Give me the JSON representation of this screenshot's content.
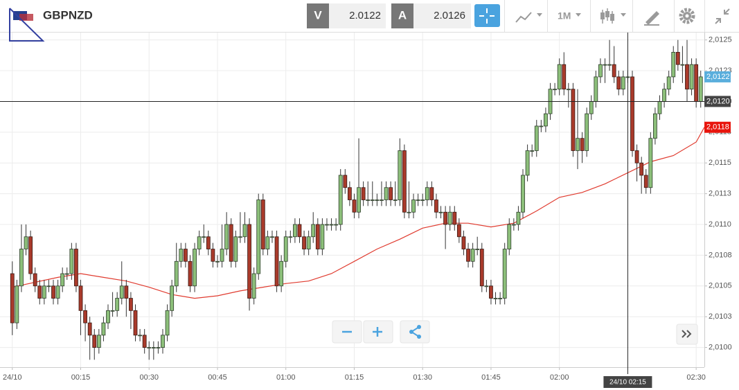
{
  "toolbar": {
    "symbol": "GBPNZD",
    "bid_label": "V",
    "bid": "2.0122",
    "ask_label": "A",
    "ask": "2.0126",
    "timeframe": "1M"
  },
  "chart_data": {
    "type": "candlestick",
    "xlim": [
      -2.7,
      151.8
    ],
    "xticks": [
      {
        "value": 0,
        "label": "24/10"
      },
      {
        "value": 15,
        "label": "00:15"
      },
      {
        "value": 30,
        "label": "00:30"
      },
      {
        "value": 45,
        "label": "00:45"
      },
      {
        "value": 60,
        "label": "01:00"
      },
      {
        "value": 75,
        "label": "01:15"
      },
      {
        "value": 90,
        "label": "01:30"
      },
      {
        "value": 105,
        "label": "01:45"
      },
      {
        "value": 120,
        "label": "02:00"
      },
      {
        "value": 150,
        "label": "02:30"
      }
    ],
    "ylim": [
      2.00984,
      2.01256
    ],
    "yticks": [
      {
        "value": 2.01,
        "label": "2,0100"
      },
      {
        "value": 2.01025,
        "label": "2,0103"
      },
      {
        "value": 2.0105,
        "label": "2,0105"
      },
      {
        "value": 2.01075,
        "label": "2,0108"
      },
      {
        "value": 2.011,
        "label": "2,0110"
      },
      {
        "value": 2.01125,
        "label": "2,0113"
      },
      {
        "value": 2.0115,
        "label": "2,0115"
      },
      {
        "value": 2.01175,
        "label": "2,0118"
      },
      {
        "value": 2.012,
        "label": "2,0120"
      },
      {
        "value": 2.01225,
        "label": "2,0123"
      },
      {
        "value": 2.0125,
        "label": "2,0125"
      }
    ],
    "grid": true,
    "up_color": "#8cbf7a",
    "down_color": "#a93a2b",
    "candles": [
      [
        2.0106,
        2.0107,
        2.0101,
        2.0102
      ],
      [
        2.0102,
        2.01055,
        2.01015,
        2.0105
      ],
      [
        2.0105,
        2.011,
        2.01045,
        2.0108
      ],
      [
        2.0108,
        2.011,
        2.01075,
        2.0109
      ],
      [
        2.0109,
        2.01095,
        2.01055,
        2.0106
      ],
      [
        2.0106,
        2.01065,
        2.01045,
        2.0105
      ],
      [
        2.0105,
        2.01055,
        2.01035,
        2.0104
      ],
      [
        2.0104,
        2.01055,
        2.01035,
        2.0105
      ],
      [
        2.0105,
        2.01055,
        2.01045,
        2.0105
      ],
      [
        2.0105,
        2.01055,
        2.01035,
        2.0104
      ],
      [
        2.0104,
        2.01055,
        2.01035,
        2.0105
      ],
      [
        2.0105,
        2.01065,
        2.01045,
        2.0106
      ],
      [
        2.0106,
        2.01065,
        2.01055,
        2.0106
      ],
      [
        2.0106,
        2.01085,
        2.01055,
        2.0108
      ],
      [
        2.0108,
        2.01085,
        2.01045,
        2.0105
      ],
      [
        2.0105,
        2.01055,
        2.0101,
        2.0103
      ],
      [
        2.0103,
        2.01035,
        2.01005,
        2.0102
      ],
      [
        2.0102,
        2.01025,
        2.0099,
        2.0101
      ],
      [
        2.0101,
        2.01015,
        2.0099,
        2.01
      ],
      [
        2.01,
        2.01015,
        2.00995,
        2.0101
      ],
      [
        2.0101,
        2.01025,
        2.01005,
        2.0102
      ],
      [
        2.0102,
        2.01035,
        2.01015,
        2.0103
      ],
      [
        2.0103,
        2.01045,
        2.01025,
        2.0103
      ],
      [
        2.0103,
        2.01045,
        2.01025,
        2.0104
      ],
      [
        2.0104,
        2.0107,
        2.01035,
        2.0105
      ],
      [
        2.0105,
        2.01055,
        2.01025,
        2.0104
      ],
      [
        2.0104,
        2.01045,
        2.01015,
        2.0103
      ],
      [
        2.0103,
        2.01035,
        2.01005,
        2.0101
      ],
      [
        2.0101,
        2.01015,
        2.01005,
        2.0101
      ],
      [
        2.0101,
        2.01015,
        2.00995,
        2.01
      ],
      [
        2.01,
        2.01005,
        2.0099,
        2.01
      ],
      [
        2.01,
        2.01005,
        2.0099,
        2.01
      ],
      [
        2.01,
        2.01005,
        2.00995,
        2.01
      ],
      [
        2.01,
        2.01015,
        2.00995,
        2.0101
      ],
      [
        2.0101,
        2.01035,
        2.01005,
        2.0103
      ],
      [
        2.0103,
        2.01055,
        2.01025,
        2.0105
      ],
      [
        2.0105,
        2.01085,
        2.01045,
        2.0107
      ],
      [
        2.0107,
        2.01085,
        2.01065,
        2.0108
      ],
      [
        2.0108,
        2.01085,
        2.01065,
        2.0107
      ],
      [
        2.0107,
        2.01075,
        2.01045,
        2.0105
      ],
      [
        2.0105,
        2.01085,
        2.01045,
        2.0108
      ],
      [
        2.0108,
        2.01095,
        2.01075,
        2.0109
      ],
      [
        2.0109,
        2.011,
        2.01085,
        2.0109
      ],
      [
        2.0109,
        2.01095,
        2.01075,
        2.0108
      ],
      [
        2.0108,
        2.01085,
        2.01065,
        2.0107
      ],
      [
        2.0107,
        2.01075,
        2.01065,
        2.0107
      ],
      [
        2.0107,
        2.011,
        2.01065,
        2.0108
      ],
      [
        2.0108,
        2.0111,
        2.01075,
        2.011
      ],
      [
        2.011,
        2.01105,
        2.01065,
        2.0107
      ],
      [
        2.0107,
        2.01095,
        2.01065,
        2.0109
      ],
      [
        2.0109,
        2.0111,
        2.01085,
        2.0109
      ],
      [
        2.0109,
        2.0111,
        2.01085,
        2.011
      ],
      [
        2.011,
        2.01105,
        2.0103,
        2.0104
      ],
      [
        2.0104,
        2.01065,
        2.01035,
        2.0106
      ],
      [
        2.0106,
        2.01125,
        2.01055,
        2.0112
      ],
      [
        2.0112,
        2.01125,
        2.01075,
        2.0108
      ],
      [
        2.0108,
        2.01095,
        2.01075,
        2.0109
      ],
      [
        2.0109,
        2.01095,
        2.01085,
        2.0109
      ],
      [
        2.0109,
        2.01095,
        2.01045,
        2.0105
      ],
      [
        2.0105,
        2.01075,
        2.01045,
        2.0107
      ],
      [
        2.0107,
        2.01095,
        2.01065,
        2.0109
      ],
      [
        2.0109,
        2.01095,
        2.01085,
        2.0109
      ],
      [
        2.0109,
        2.01105,
        2.01085,
        2.011
      ],
      [
        2.011,
        2.01105,
        2.01085,
        2.0109
      ],
      [
        2.0109,
        2.01095,
        2.01075,
        2.0108
      ],
      [
        2.0108,
        2.01095,
        2.01075,
        2.0109
      ],
      [
        2.0109,
        2.0111,
        2.01085,
        2.011
      ],
      [
        2.011,
        2.01105,
        2.01075,
        2.0108
      ],
      [
        2.0108,
        2.01105,
        2.01075,
        2.011
      ],
      [
        2.011,
        2.01105,
        2.01095,
        2.011
      ],
      [
        2.011,
        2.01105,
        2.01095,
        2.011
      ],
      [
        2.011,
        2.01105,
        2.01095,
        2.011
      ],
      [
        2.011,
        2.01145,
        2.01095,
        2.0114
      ],
      [
        2.0114,
        2.01145,
        2.01125,
        2.0113
      ],
      [
        2.0113,
        2.01135,
        2.01115,
        2.0112
      ],
      [
        2.0112,
        2.01125,
        2.01105,
        2.0111
      ],
      [
        2.0111,
        2.0117,
        2.01105,
        2.0113
      ],
      [
        2.0113,
        2.01135,
        2.01115,
        2.0112
      ],
      [
        2.0112,
        2.01135,
        2.01115,
        2.0112
      ],
      [
        2.0112,
        2.01135,
        2.01115,
        2.0112
      ],
      [
        2.0112,
        2.01125,
        2.01115,
        2.0112
      ],
      [
        2.0112,
        2.01135,
        2.01115,
        2.0112
      ],
      [
        2.0112,
        2.01135,
        2.01115,
        2.0113
      ],
      [
        2.0113,
        2.01135,
        2.01115,
        2.0112
      ],
      [
        2.0112,
        2.01135,
        2.01115,
        2.0112
      ],
      [
        2.0112,
        2.0117,
        2.01115,
        2.0116
      ],
      [
        2.0116,
        2.01165,
        2.01105,
        2.0111
      ],
      [
        2.0111,
        2.01135,
        2.01105,
        2.0111
      ],
      [
        2.0111,
        2.01125,
        2.01105,
        2.0112
      ],
      [
        2.0112,
        2.01125,
        2.01115,
        2.0112
      ],
      [
        2.0112,
        2.01125,
        2.01115,
        2.0112
      ],
      [
        2.0112,
        2.01135,
        2.01115,
        2.0113
      ],
      [
        2.0113,
        2.01135,
        2.01115,
        2.0112
      ],
      [
        2.0112,
        2.01125,
        2.01105,
        2.0111
      ],
      [
        2.0111,
        2.01115,
        2.01105,
        2.0111
      ],
      [
        2.0111,
        2.01115,
        2.0108,
        2.011
      ],
      [
        2.011,
        2.01115,
        2.01095,
        2.0111
      ],
      [
        2.0111,
        2.01115,
        2.01095,
        2.011
      ],
      [
        2.011,
        2.01105,
        2.01085,
        2.0109
      ],
      [
        2.0109,
        2.01095,
        2.01075,
        2.0108
      ],
      [
        2.0108,
        2.01085,
        2.01065,
        2.0107
      ],
      [
        2.0107,
        2.01085,
        2.01065,
        2.0108
      ],
      [
        2.0108,
        2.0109,
        2.01075,
        2.0108
      ],
      [
        2.0108,
        2.01085,
        2.01045,
        2.0105
      ],
      [
        2.0105,
        2.01055,
        2.01045,
        2.0105
      ],
      [
        2.0105,
        2.01055,
        2.01035,
        2.0104
      ],
      [
        2.0104,
        2.01045,
        2.01035,
        2.0104
      ],
      [
        2.0104,
        2.01045,
        2.01035,
        2.0104
      ],
      [
        2.0104,
        2.01085,
        2.01035,
        2.0108
      ],
      [
        2.0108,
        2.01105,
        2.01075,
        2.011
      ],
      [
        2.011,
        2.01105,
        2.01095,
        2.011
      ],
      [
        2.011,
        2.01115,
        2.01095,
        2.0111
      ],
      [
        2.0111,
        2.01145,
        2.01105,
        2.0114
      ],
      [
        2.0114,
        2.01165,
        2.01135,
        2.0116
      ],
      [
        2.0116,
        2.01165,
        2.01155,
        2.0116
      ],
      [
        2.0116,
        2.01185,
        2.01155,
        2.0118
      ],
      [
        2.0118,
        2.01185,
        2.01175,
        2.0118
      ],
      [
        2.0118,
        2.01195,
        2.01175,
        2.0119
      ],
      [
        2.0119,
        2.01215,
        2.01185,
        2.0121
      ],
      [
        2.0121,
        2.01215,
        2.01205,
        2.0121
      ],
      [
        2.0121,
        2.01235,
        2.01205,
        2.0123
      ],
      [
        2.0123,
        2.0124,
        2.01205,
        2.0121
      ],
      [
        2.0121,
        2.01215,
        2.01195,
        2.0121
      ],
      [
        2.0121,
        2.01215,
        2.01155,
        2.0116
      ],
      [
        2.0116,
        2.0121,
        2.01145,
        2.0117
      ],
      [
        2.0117,
        2.01175,
        2.0115,
        2.0116
      ],
      [
        2.0116,
        2.01195,
        2.01155,
        2.0119
      ],
      [
        2.0119,
        2.01205,
        2.01185,
        2.012
      ],
      [
        2.012,
        2.01225,
        2.01195,
        2.0122
      ],
      [
        2.0122,
        2.01235,
        2.01215,
        2.0123
      ],
      [
        2.0123,
        2.01235,
        2.01215,
        2.0123
      ],
      [
        2.0123,
        2.0125,
        2.01225,
        2.0123
      ],
      [
        2.0123,
        2.01245,
        2.01215,
        2.0122
      ],
      [
        2.0122,
        2.01225,
        2.01205,
        2.0121
      ],
      [
        2.0121,
        2.01225,
        2.01205,
        2.0122
      ],
      [
        2.0122,
        2.01225,
        2.01215,
        2.0122
      ],
      [
        2.0122,
        2.01225,
        2.01155,
        2.0116
      ],
      [
        2.0116,
        2.01165,
        2.01135,
        2.0115
      ],
      [
        2.0115,
        2.01155,
        2.01125,
        2.0114
      ],
      [
        2.0114,
        2.01145,
        2.01125,
        2.0113
      ],
      [
        2.0113,
        2.01175,
        2.01125,
        2.0117
      ],
      [
        2.0117,
        2.01195,
        2.01165,
        2.0119
      ],
      [
        2.0119,
        2.01205,
        2.01185,
        2.012
      ],
      [
        2.012,
        2.01215,
        2.01195,
        2.0121
      ],
      [
        2.0121,
        2.01225,
        2.01205,
        2.0122
      ],
      [
        2.0122,
        2.01245,
        2.01215,
        2.0124
      ],
      [
        2.0124,
        2.0125,
        2.01225,
        2.0123
      ],
      [
        2.0123,
        2.01245,
        2.01215,
        2.0123
      ],
      [
        2.0123,
        2.0125,
        2.012,
        2.0121
      ],
      [
        2.0121,
        2.01235,
        2.01205,
        2.0123
      ],
      [
        2.0123,
        2.01235,
        2.01195,
        2.012
      ],
      [
        2.012,
        2.01225,
        2.01195,
        2.0122
      ]
    ],
    "moving_average": {
      "color": "#e03a2e",
      "x": [
        0,
        10,
        15,
        20,
        25,
        30,
        35,
        40,
        45,
        50,
        55,
        60,
        65,
        70,
        75,
        80,
        85,
        90,
        95,
        100,
        105,
        110,
        115,
        120,
        125,
        130,
        135,
        140,
        145,
        150,
        151.8
      ],
      "values": [
        2.01049,
        2.01057,
        2.0106,
        2.01057,
        2.01054,
        2.01049,
        2.01043,
        2.0104,
        2.01042,
        2.01046,
        2.01049,
        2.01052,
        2.01054,
        2.0106,
        2.0107,
        2.0108,
        2.01088,
        2.01097,
        2.01101,
        2.01101,
        2.01098,
        2.01101,
        2.01111,
        2.01122,
        2.01126,
        2.01133,
        2.01142,
        2.01151,
        2.01156,
        2.01167,
        2.01179
      ]
    },
    "price_markers": [
      {
        "value": 2.0122,
        "label": "2,0122",
        "color": "#5aaedc"
      },
      {
        "value": 2.01179,
        "label": "2,0118",
        "color": "#e8140c"
      }
    ],
    "crosshair": {
      "x": {
        "value": 135,
        "label": "24/10 02:15"
      },
      "y": {
        "value": 2.012,
        "label": "2,0120"
      }
    }
  }
}
